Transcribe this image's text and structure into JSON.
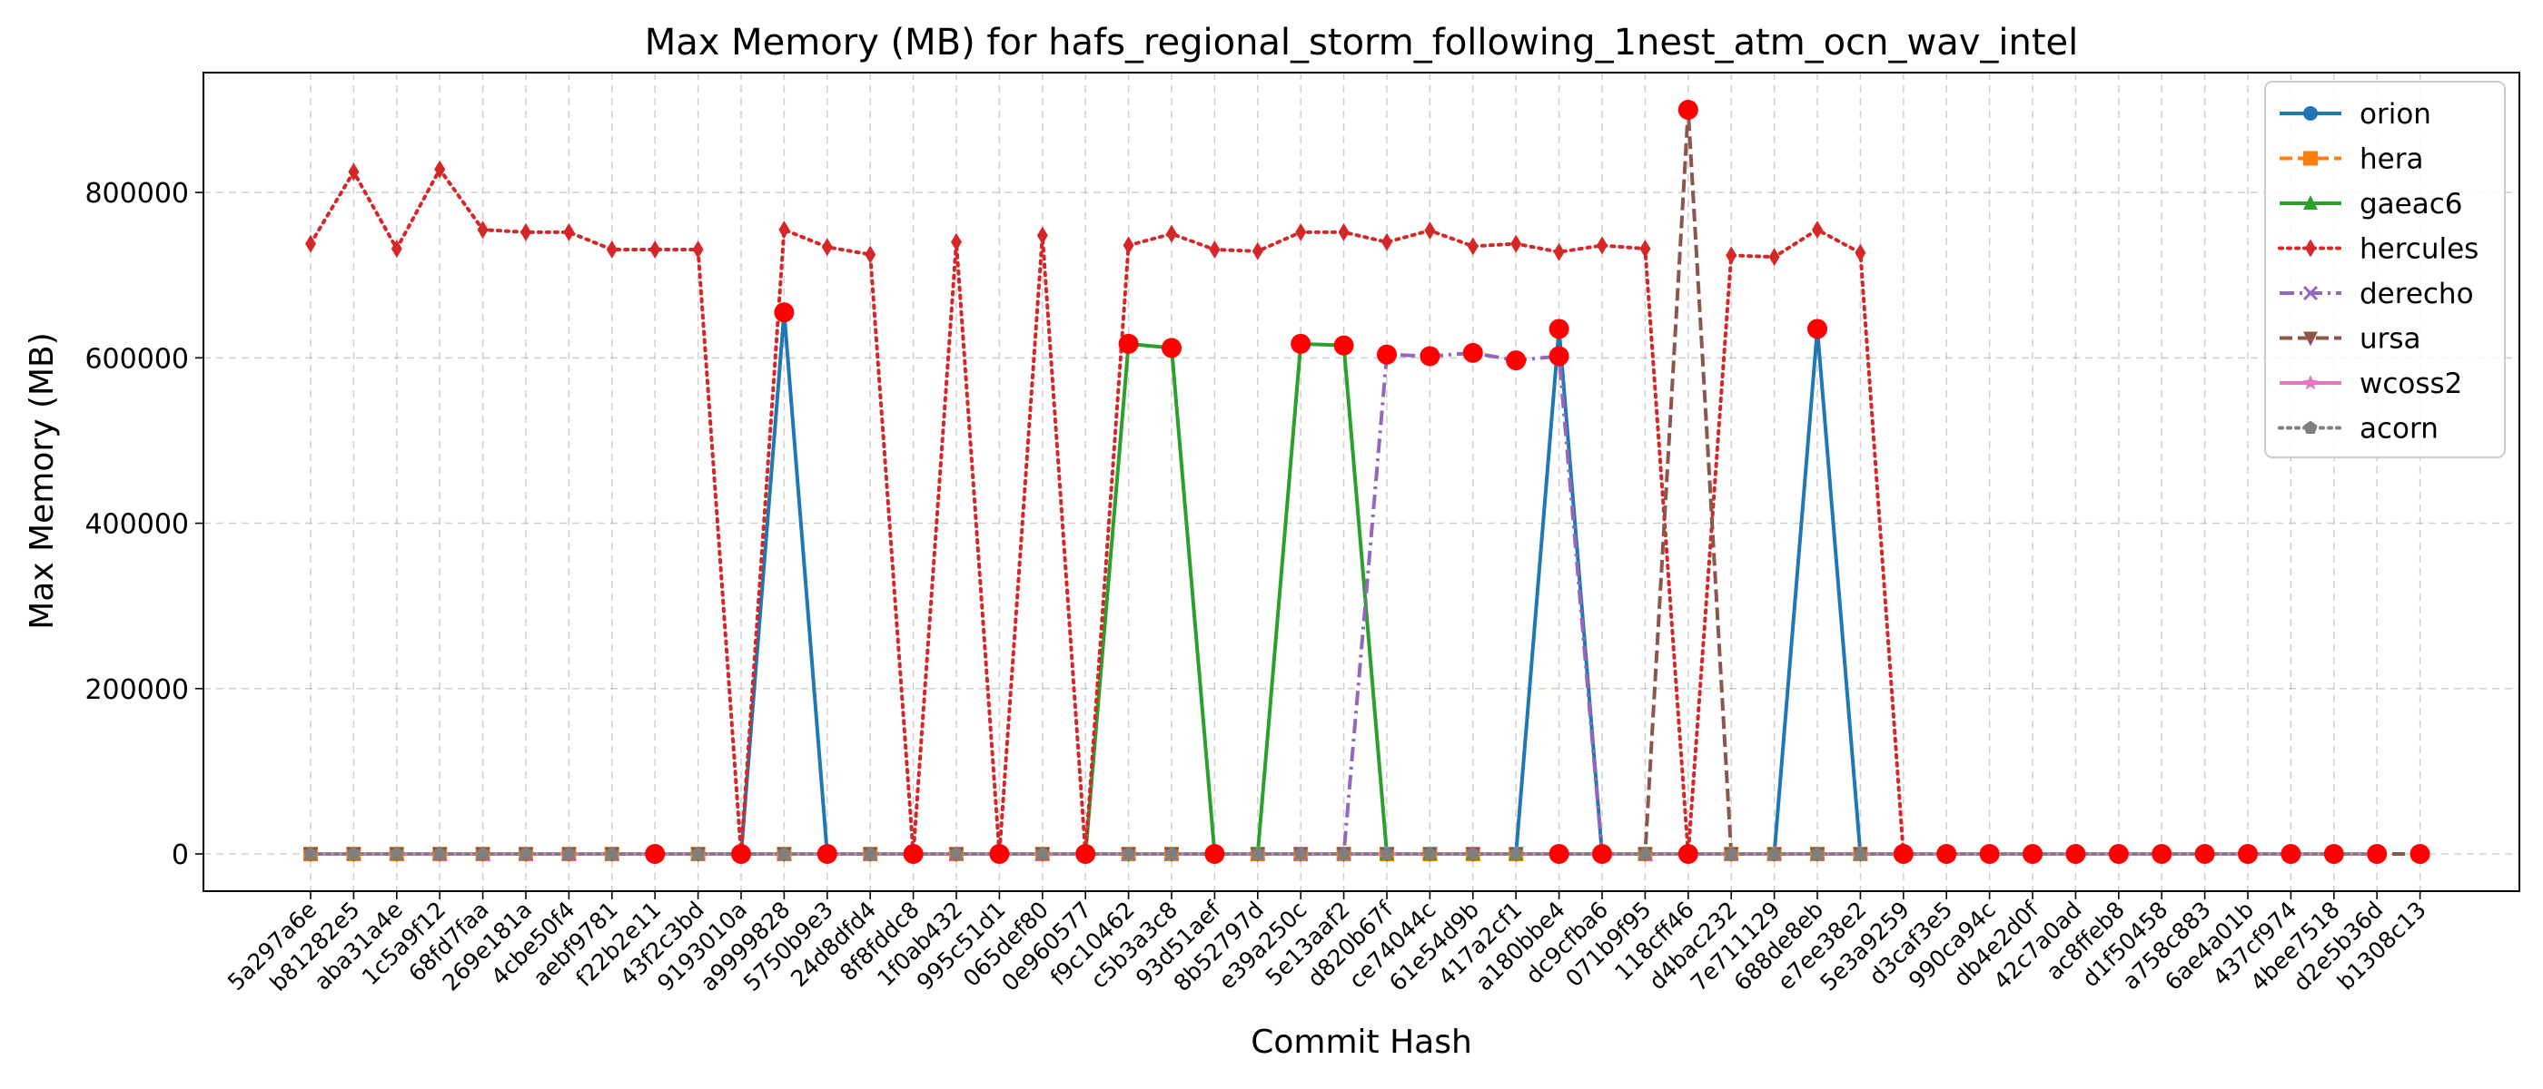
{
  "chart_data": {
    "type": "line",
    "title": "Max Memory (MB) for hafs_regional_storm_following_1nest_atm_ocn_wav_intel",
    "xlabel": "Commit Hash",
    "ylabel": "Max Memory (MB)",
    "ylim": [
      -45000,
      945000
    ],
    "yticks": [
      0,
      200000,
      400000,
      600000,
      800000
    ],
    "ytick_labels": [
      "0",
      "200000",
      "400000",
      "600000",
      "800000"
    ],
    "grid": true,
    "legend_position": "top-right",
    "categories": [
      "5a297a6e",
      "b81282e5",
      "aba31a4e",
      "1c5a9f12",
      "68fd7faa",
      "269e181a",
      "4cbe50f4",
      "aebf9781",
      "f22b2e11",
      "43f2c3bd",
      "9193010a",
      "a9999828",
      "5750b9e3",
      "24d8dfd4",
      "8f8fddc8",
      "1f0ab432",
      "995c51d1",
      "065def80",
      "0e960577",
      "f9c10462",
      "c5b3a3c8",
      "93d51aef",
      "8b52797d",
      "e39a250c",
      "5e13aaf2",
      "d820b67f",
      "ce74044c",
      "61e54d9b",
      "417a2cf1",
      "a180bbe4",
      "dc9cfba6",
      "071b9f95",
      "118cff46",
      "d4bac232",
      "7e711129",
      "688de8eb",
      "e7ee38e2",
      "5e3a9259",
      "d3caf3e5",
      "990ca94c",
      "db4e2d0f",
      "42c7a0ad",
      "ac8ffeb8",
      "d1f50458",
      "a758c883",
      "6ae4a01b",
      "437cf974",
      "4bee7518",
      "d2e5b36d",
      "b1308c13"
    ],
    "series": [
      {
        "name": "orion",
        "color": "#1f77b4",
        "dash": "solid",
        "marker": "circle",
        "values": [
          0,
          0,
          0,
          0,
          0,
          0,
          0,
          0,
          0,
          0,
          0,
          655000,
          0,
          0,
          0,
          0,
          0,
          0,
          0,
          0,
          0,
          0,
          0,
          0,
          0,
          0,
          0,
          0,
          0,
          635000,
          0,
          0,
          0,
          0,
          0,
          635000,
          0,
          0,
          0,
          0,
          0,
          0,
          0,
          0,
          0,
          0,
          0,
          0,
          0,
          null
        ]
      },
      {
        "name": "hera",
        "color": "#ff7f0e",
        "dash": "dashed",
        "marker": "square",
        "values": [
          0,
          0,
          0,
          0,
          0,
          0,
          0,
          0,
          0,
          0,
          0,
          0,
          0,
          0,
          0,
          0,
          0,
          0,
          0,
          0,
          0,
          0,
          0,
          0,
          0,
          0,
          0,
          0,
          0,
          0,
          0,
          0,
          0,
          0,
          0,
          0,
          0,
          0,
          0,
          0,
          0,
          0,
          0,
          0,
          0,
          0,
          0,
          0,
          0,
          null
        ]
      },
      {
        "name": "gaeac6",
        "color": "#2ca02c",
        "dash": "solid",
        "marker": "triangle-up",
        "values": [
          0,
          0,
          0,
          0,
          0,
          0,
          0,
          0,
          0,
          0,
          0,
          0,
          0,
          0,
          0,
          0,
          0,
          0,
          0,
          617000,
          612000,
          0,
          0,
          617000,
          615000,
          0,
          0,
          0,
          0,
          0,
          0,
          0,
          0,
          0,
          0,
          0,
          0,
          0,
          0,
          0,
          0,
          0,
          0,
          0,
          0,
          0,
          0,
          0,
          0,
          null
        ]
      },
      {
        "name": "hercules",
        "color": "#d62728",
        "dash": "dotted",
        "marker": "diamond",
        "values": [
          738000,
          825000,
          732000,
          828000,
          755000,
          752000,
          752000,
          731000,
          731000,
          731000,
          0,
          755000,
          734000,
          725000,
          0,
          740000,
          0,
          748000,
          0,
          736000,
          750000,
          731000,
          729000,
          752000,
          752000,
          740000,
          754000,
          735000,
          738000,
          728000,
          736000,
          732000,
          0,
          724000,
          722000,
          755000,
          727000,
          0,
          0,
          0,
          0,
          0,
          0,
          0,
          0,
          0,
          0,
          0,
          0,
          null
        ]
      },
      {
        "name": "derecho",
        "color": "#9467bd",
        "dash": "dashdot",
        "marker": "x",
        "values": [
          0,
          0,
          0,
          0,
          0,
          0,
          0,
          0,
          0,
          0,
          0,
          0,
          0,
          0,
          0,
          0,
          0,
          0,
          0,
          0,
          0,
          0,
          0,
          0,
          0,
          604000,
          602000,
          606000,
          597000,
          602000,
          0,
          0,
          0,
          0,
          0,
          0,
          0,
          0,
          0,
          0,
          0,
          0,
          0,
          0,
          0,
          0,
          0,
          0,
          0,
          null
        ]
      },
      {
        "name": "ursa",
        "color": "#8c564b",
        "dash": "dashed",
        "marker": "triangle-down",
        "values": [
          0,
          0,
          0,
          0,
          0,
          0,
          0,
          0,
          0,
          0,
          0,
          0,
          0,
          0,
          0,
          0,
          0,
          0,
          0,
          0,
          0,
          0,
          0,
          0,
          0,
          0,
          0,
          0,
          0,
          0,
          0,
          0,
          900000,
          0,
          0,
          0,
          0,
          0,
          0,
          0,
          0,
          0,
          0,
          0,
          0,
          0,
          0,
          0,
          0,
          0
        ]
      },
      {
        "name": "wcoss2",
        "color": "#e377c2",
        "dash": "solid",
        "marker": "star",
        "values": [
          0,
          0,
          0,
          0,
          0,
          0,
          0,
          0,
          0,
          0,
          0,
          0,
          0,
          0,
          0,
          0,
          0,
          0,
          0,
          0,
          0,
          0,
          0,
          0,
          0,
          0,
          0,
          0,
          0,
          0,
          0,
          0,
          0,
          0,
          0,
          0,
          0,
          0,
          0,
          0,
          0,
          0,
          0,
          0,
          0,
          0,
          0,
          0,
          0,
          null
        ]
      },
      {
        "name": "acorn",
        "color": "#7f7f7f",
        "dash": "dotted",
        "marker": "pentagon",
        "values": [
          0,
          0,
          0,
          0,
          0,
          0,
          0,
          0,
          0,
          0,
          0,
          0,
          0,
          0,
          0,
          0,
          0,
          0,
          0,
          0,
          0,
          0,
          0,
          0,
          0,
          0,
          0,
          0,
          0,
          0,
          0,
          0,
          0,
          0,
          0,
          0,
          0,
          0,
          0,
          0,
          0,
          0,
          0,
          0,
          0,
          0,
          0,
          0,
          0,
          null
        ]
      }
    ],
    "highlights": {
      "color": "#ff0000",
      "points": [
        [
          8,
          0
        ],
        [
          10,
          0
        ],
        [
          11,
          655000
        ],
        [
          12,
          0
        ],
        [
          14,
          0
        ],
        [
          16,
          0
        ],
        [
          18,
          0
        ],
        [
          19,
          617000
        ],
        [
          20,
          612000
        ],
        [
          21,
          0
        ],
        [
          23,
          617000
        ],
        [
          24,
          615000
        ],
        [
          25,
          604000
        ],
        [
          26,
          602000
        ],
        [
          27,
          606000
        ],
        [
          28,
          597000
        ],
        [
          29,
          635000
        ],
        [
          29,
          602000
        ],
        [
          29,
          0
        ],
        [
          30,
          0
        ],
        [
          32,
          900000
        ],
        [
          32,
          0
        ],
        [
          35,
          635000
        ],
        [
          37,
          0
        ],
        [
          38,
          0
        ],
        [
          39,
          0
        ],
        [
          40,
          0
        ],
        [
          41,
          0
        ],
        [
          42,
          0
        ],
        [
          43,
          0
        ],
        [
          44,
          0
        ],
        [
          45,
          0
        ],
        [
          46,
          0
        ],
        [
          47,
          0
        ],
        [
          48,
          0
        ],
        [
          49,
          0
        ]
      ]
    }
  }
}
